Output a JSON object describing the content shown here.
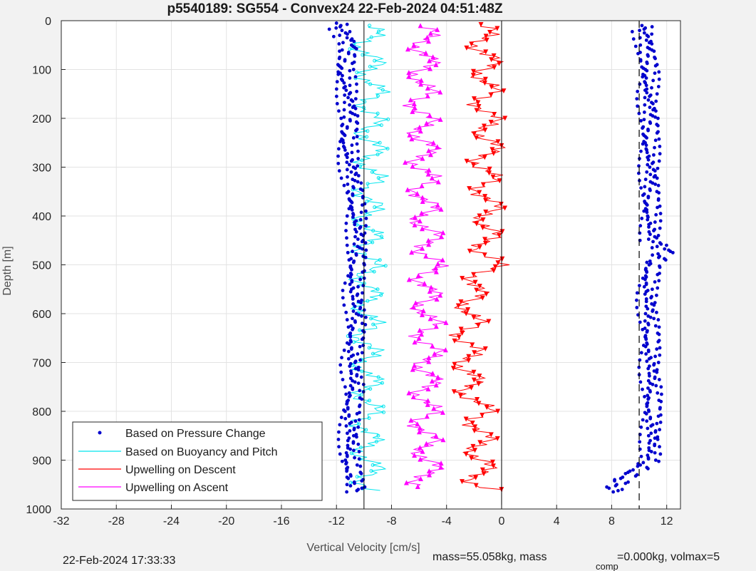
{
  "chart_data": {
    "type": "line",
    "title": "p5540189: SG554 - Convex24 22-Feb-2024 04:51:48Z",
    "xlabel": "Vertical Velocity [cm/s]",
    "ylabel": "Depth [m]",
    "xlim": [
      -32,
      13
    ],
    "ylim": [
      0,
      1000
    ],
    "y_reversed": true,
    "grid": true,
    "xticks": [
      -32,
      -28,
      -24,
      -20,
      -16,
      -12,
      -8,
      -4,
      0,
      4,
      8,
      12
    ],
    "yticks": [
      0,
      100,
      200,
      300,
      400,
      500,
      600,
      700,
      800,
      900,
      1000
    ],
    "reference_lines": {
      "solid_x": [
        -10,
        0
      ],
      "dashed_x": [
        10
      ]
    },
    "legend_position": "bottom-left",
    "series": [
      {
        "name": "Based on Pressure Change",
        "color": "#0000cd",
        "style": "dots",
        "descent": {
          "depth": [
            5,
            50,
            100,
            150,
            200,
            250,
            300,
            350,
            400,
            450,
            500,
            550,
            600,
            650,
            700,
            750,
            800,
            850,
            900,
            950,
            965
          ],
          "velocity": [
            -12,
            -11,
            -11.5,
            -11.2,
            -11,
            -11.3,
            -11,
            -10.7,
            -10.6,
            -10.4,
            -10.6,
            -10.8,
            -10.5,
            -10.7,
            -10.9,
            -10.7,
            -11,
            -11,
            -11.1,
            -10.6,
            -10.5
          ]
        },
        "ascent": {
          "depth": [
            965,
            940,
            920,
            900,
            850,
            800,
            750,
            700,
            650,
            600,
            550,
            500,
            470,
            450,
            400,
            350,
            300,
            250,
            200,
            150,
            100,
            50,
            10
          ],
          "velocity": [
            8,
            8.7,
            9.8,
            10.8,
            10.9,
            10.9,
            10.9,
            10.8,
            10.8,
            10.7,
            10.6,
            10.9,
            12,
            10.9,
            10.8,
            10.8,
            10.8,
            10.7,
            10.8,
            10.6,
            10.7,
            10.5,
            10.2
          ]
        }
      },
      {
        "name": "Based on Buoyancy and Pitch",
        "color": "#00e5ee",
        "style": "line-circles",
        "descent": {
          "depth": [
            10,
            50,
            100,
            150,
            200,
            250,
            300,
            350,
            400,
            450,
            500,
            550,
            600,
            650,
            700,
            750,
            800,
            850,
            900,
            950,
            965
          ],
          "velocity": [
            -9.6,
            -9.8,
            -9.5,
            -9.4,
            -9.6,
            -9.5,
            -9.5,
            -9.6,
            -9.7,
            -9.7,
            -9.8,
            -9.8,
            -9.7,
            -9.8,
            -9.8,
            -9.7,
            -9.8,
            -9.8,
            -9.7,
            -9.6,
            -9.5
          ]
        }
      },
      {
        "name": "Upwelling on Descent",
        "color": "#ff0000",
        "style": "line-down-triangles",
        "profile": {
          "depth": [
            8,
            50,
            100,
            150,
            200,
            250,
            300,
            350,
            400,
            450,
            500,
            550,
            600,
            650,
            700,
            750,
            800,
            850,
            900,
            950,
            965
          ],
          "velocity": [
            -1.5,
            -1.3,
            -1,
            -1.2,
            -1.1,
            -0.9,
            -1.3,
            -1.1,
            -0.9,
            -1.2,
            -0.8,
            -2.1,
            -2.2,
            -2.5,
            -2.4,
            -2.4,
            -1.5,
            -1.6,
            -1.6,
            -1.5,
            -0.3
          ]
        }
      },
      {
        "name": "Upwelling on Ascent",
        "color": "#ff00ff",
        "style": "line-up-triangles",
        "profile": {
          "depth": [
            960,
            930,
            900,
            850,
            800,
            750,
            700,
            650,
            600,
            550,
            500,
            450,
            400,
            350,
            300,
            250,
            200,
            150,
            100,
            50,
            10
          ],
          "velocity": [
            -5.6,
            -5.5,
            -5.3,
            -5.6,
            -5.5,
            -5.5,
            -5.3,
            -5.4,
            -5.4,
            -5.5,
            -5.2,
            -5.3,
            -5.6,
            -5.6,
            -5.7,
            -5.6,
            -5.8,
            -5.8,
            -5.7,
            -5.5,
            -5.9
          ]
        }
      }
    ]
  },
  "footer": {
    "timestamp": "22-Feb-2024 17:33:33",
    "mass_text": "mass=55.058kg, mass",
    "comp_sub": "comp",
    "mass_comp_text": "=0.000kg, volmax=5"
  },
  "colors": {
    "background": "#f2f2f2",
    "plot_area": "#ffffff",
    "grid": "#e0e0e0"
  }
}
